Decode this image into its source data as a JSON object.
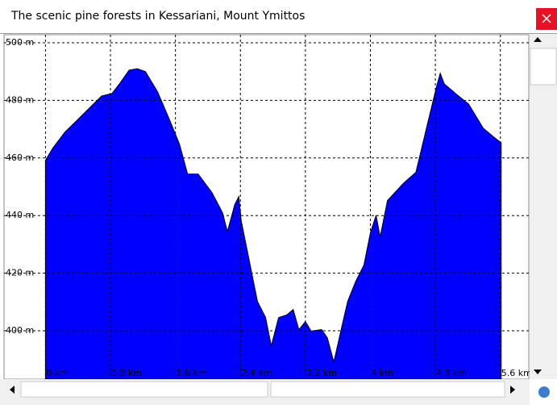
{
  "window": {
    "title": "The scenic pine forests in Kessariani, Mount Ymittos"
  },
  "chart_data": {
    "type": "area",
    "x": [
      0,
      0.09,
      0.24,
      0.39,
      0.54,
      0.69,
      0.82,
      0.91,
      1.03,
      1.13,
      1.23,
      1.38,
      1.53,
      1.65,
      1.75,
      1.88,
      2.05,
      2.18,
      2.24,
      2.33,
      2.38,
      2.41,
      2.48,
      2.61,
      2.71,
      2.78,
      2.87,
      2.97,
      3.05,
      3.12,
      3.2,
      3.27,
      3.4,
      3.47,
      3.55,
      3.64,
      3.72,
      3.82,
      3.92,
      4,
      4.07,
      4.12,
      4.21,
      4.41,
      4.56,
      4.69,
      4.81,
      4.86,
      4.91,
      5.06,
      5.21,
      5.39,
      5.53,
      5.61
    ],
    "series": [
      {
        "color": "#0000ff",
        "values": [
          459.2,
          463.4,
          469,
          473.1,
          477.3,
          481.5,
          482.4,
          485.7,
          490.5,
          491,
          490,
          483,
          473.1,
          464.8,
          454.4,
          454.4,
          448,
          441,
          434.5,
          443.8,
          446.6,
          438.2,
          428.4,
          410.2,
          404.6,
          394.8,
          404.6,
          405.5,
          407.4,
          400.4,
          403.2,
          399.9,
          400.4,
          397.6,
          389.2,
          400.4,
          410.2,
          417.2,
          422.8,
          434,
          440.1,
          432.6,
          445.2,
          451.3,
          455,
          470.3,
          484.3,
          489.4,
          485.7,
          482.1,
          478.7,
          470.3,
          467,
          465.3
        ]
      }
    ],
    "xlim": [
      -0.51,
      5.95
    ],
    "ylim": [
      383.2,
      502.8
    ],
    "xticks": [
      {
        "value": 0,
        "label": "0 km"
      },
      {
        "value": 0.8,
        "label": "0.8 km"
      },
      {
        "value": 1.6,
        "label": "1.6 km"
      },
      {
        "value": 2.4,
        "label": "2.4 km"
      },
      {
        "value": 3.2,
        "label": "3.2 km"
      },
      {
        "value": 4,
        "label": "4 km"
      },
      {
        "value": 4.8,
        "label": "4.8 km"
      },
      {
        "value": 5.6,
        "label": "5.6 km"
      }
    ],
    "yticks": [
      {
        "value": 400,
        "label": "400 m"
      },
      {
        "value": 420,
        "label": "420 m"
      },
      {
        "value": 440,
        "label": "440 m"
      },
      {
        "value": 460,
        "label": "460 m"
      },
      {
        "value": 480,
        "label": "480 m"
      },
      {
        "value": 500,
        "label": "500 m"
      }
    ],
    "grid": true
  }
}
